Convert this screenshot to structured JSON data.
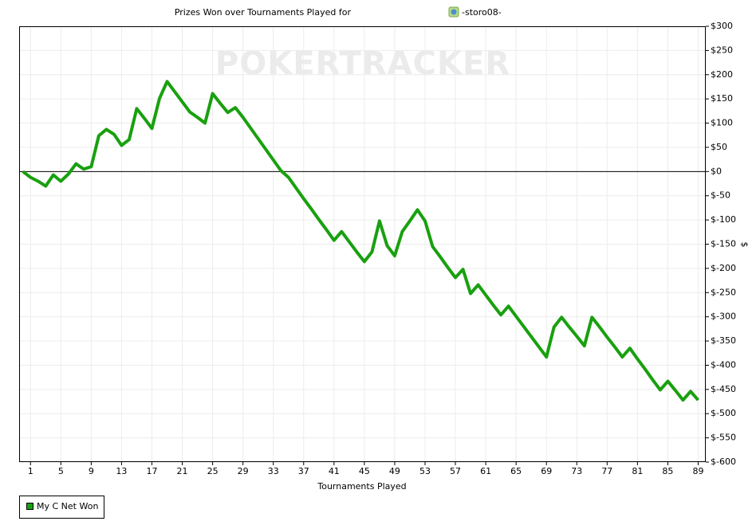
{
  "chart_data": {
    "type": "line",
    "title": "Prizes Won over Tournaments Played for",
    "title_user": "-storo08-",
    "watermark": "POKERTRACKER",
    "x_label": "Tournaments Played",
    "y_label": "$",
    "grid": true,
    "legend": "bottom-left",
    "xlim": [
      -0.5,
      90
    ],
    "xticks": [
      1,
      5,
      9,
      13,
      17,
      21,
      25,
      29,
      33,
      37,
      41,
      45,
      49,
      53,
      57,
      61,
      65,
      69,
      73,
      77,
      81,
      85,
      89
    ],
    "ylim": [
      -600,
      300
    ],
    "yticks": [
      {
        "value": 300,
        "label": "$300"
      },
      {
        "value": 250,
        "label": "$250"
      },
      {
        "value": 200,
        "label": "$200"
      },
      {
        "value": 150,
        "label": "$150"
      },
      {
        "value": 100,
        "label": "$100"
      },
      {
        "value": 50,
        "label": "$50"
      },
      {
        "value": 0,
        "label": "$0"
      },
      {
        "value": -50,
        "label": "$-50"
      },
      {
        "value": -100,
        "label": "$-100"
      },
      {
        "value": -150,
        "label": "$-150"
      },
      {
        "value": -200,
        "label": "$-200"
      },
      {
        "value": -250,
        "label": "$-250"
      },
      {
        "value": -300,
        "label": "$-300"
      },
      {
        "value": -350,
        "label": "$-350"
      },
      {
        "value": -400,
        "label": "$-400"
      },
      {
        "value": -450,
        "label": "$-450"
      },
      {
        "value": -500,
        "label": "$-500"
      },
      {
        "value": -550,
        "label": "$-550"
      },
      {
        "value": -600,
        "label": "$-600"
      }
    ],
    "x": [
      0,
      1,
      2,
      3,
      4,
      5,
      6,
      7,
      8,
      9,
      10,
      11,
      12,
      13,
      14,
      15,
      16,
      17,
      18,
      19,
      20,
      21,
      22,
      23,
      24,
      25,
      26,
      27,
      28,
      29,
      30,
      31,
      32,
      33,
      34,
      35,
      36,
      37,
      38,
      39,
      40,
      41,
      42,
      43,
      44,
      45,
      46,
      47,
      48,
      49,
      50,
      51,
      52,
      53,
      54,
      55,
      56,
      57,
      58,
      59,
      60,
      61,
      62,
      63,
      64,
      65,
      66,
      67,
      68,
      69,
      70,
      71,
      72,
      73,
      74,
      75,
      76,
      77,
      78,
      79,
      80,
      81,
      82,
      83,
      84,
      85,
      86,
      87,
      88,
      89
    ],
    "series": [
      {
        "name": "My C Net Won",
        "color": "#19a00f",
        "values": [
          0,
          -12,
          -20,
          -30,
          -7,
          -20,
          -5,
          16,
          5,
          10,
          74,
          87,
          77,
          54,
          66,
          130,
          110,
          89,
          151,
          186,
          165,
          144,
          123,
          112,
          100,
          161,
          141,
          122,
          132,
          112,
          90,
          68,
          46,
          24,
          2,
          -12,
          -34,
          -56,
          -77,
          -99,
          -120,
          -142,
          -124,
          -145,
          -166,
          -186,
          -166,
          -102,
          -153,
          -174,
          -124,
          -102,
          -79,
          -102,
          -155,
          -176,
          -198,
          -219,
          -202,
          -252,
          -234,
          -255,
          -276,
          -296,
          -278,
          -299,
          -320,
          -341,
          -362,
          -383,
          -321,
          -301,
          -321,
          -340,
          -360,
          -301,
          -321,
          -342,
          -362,
          -383,
          -365,
          -387,
          -408,
          -430,
          -451,
          -433,
          -452,
          -472,
          -454,
          -472
        ]
      }
    ]
  }
}
